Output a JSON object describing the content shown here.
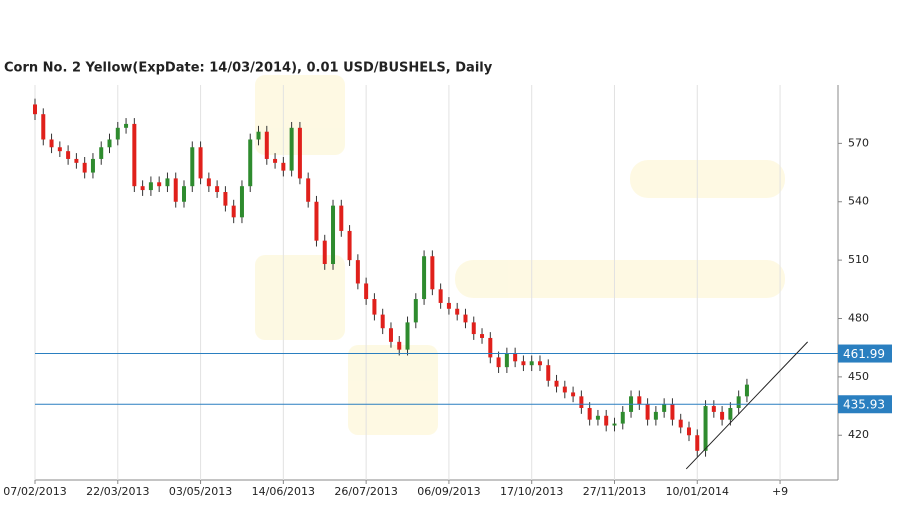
{
  "chart_data": {
    "type": "candlestick",
    "title": "Corn  No. 2 Yellow(ExpDate: 14/03/2014), 0.01 USD/BUSHELS, Daily",
    "x": [
      0,
      3,
      6,
      9,
      12,
      15,
      18,
      21,
      24,
      27,
      30,
      33,
      36,
      39,
      42,
      45,
      48,
      51,
      54,
      57,
      60,
      63,
      66,
      69,
      72,
      75,
      78,
      81,
      84,
      87,
      90,
      93,
      96,
      99,
      102,
      105,
      108,
      111,
      114,
      117,
      120,
      123,
      126,
      129,
      132,
      135,
      138,
      141,
      144,
      147,
      150,
      153,
      156,
      159,
      162,
      165,
      168,
      171,
      174,
      177,
      180,
      183,
      186,
      189,
      192,
      195,
      198,
      201,
      204,
      207,
      210,
      213,
      216,
      219,
      222,
      225,
      228,
      231,
      234,
      237,
      240,
      243,
      246,
      249,
      252,
      255,
      258
    ],
    "open": [
      590,
      585,
      572,
      568,
      566,
      562,
      560,
      555,
      562,
      568,
      572,
      578,
      580,
      548,
      546,
      550,
      548,
      552,
      540,
      548,
      568,
      552,
      548,
      545,
      538,
      532,
      548,
      572,
      576,
      562,
      560,
      556,
      578,
      552,
      540,
      520,
      508,
      538,
      525,
      510,
      498,
      490,
      482,
      475,
      468,
      464,
      478,
      490,
      512,
      495,
      488,
      485,
      482,
      478,
      472,
      470,
      460,
      455,
      462,
      458,
      456,
      458,
      456,
      448,
      445,
      442,
      440,
      434,
      428,
      430,
      425,
      426,
      432,
      440,
      436,
      428,
      432,
      436,
      428,
      424,
      420,
      412,
      435,
      432,
      428,
      434,
      440
    ],
    "high": [
      593,
      588,
      575,
      571,
      569,
      565,
      563,
      565,
      571,
      575,
      581,
      583,
      583,
      551,
      553,
      553,
      555,
      555,
      551,
      571,
      571,
      555,
      551,
      548,
      541,
      551,
      575,
      579,
      579,
      565,
      563,
      581,
      581,
      555,
      543,
      523,
      541,
      541,
      528,
      513,
      501,
      493,
      485,
      478,
      471,
      481,
      493,
      515,
      515,
      498,
      491,
      488,
      485,
      481,
      475,
      473,
      463,
      465,
      465,
      461,
      461,
      461,
      459,
      451,
      448,
      445,
      443,
      437,
      433,
      433,
      429,
      435,
      443,
      443,
      439,
      435,
      439,
      439,
      431,
      427,
      423,
      438,
      438,
      435,
      437,
      443,
      449
    ],
    "low": [
      582,
      569,
      565,
      563,
      559,
      557,
      552,
      552,
      559,
      565,
      569,
      575,
      545,
      543,
      543,
      545,
      545,
      537,
      537,
      545,
      549,
      545,
      542,
      535,
      529,
      529,
      545,
      569,
      559,
      557,
      553,
      553,
      549,
      537,
      517,
      505,
      505,
      522,
      507,
      495,
      487,
      479,
      472,
      465,
      461,
      461,
      475,
      487,
      492,
      485,
      482,
      479,
      475,
      469,
      467,
      457,
      452,
      452,
      455,
      453,
      453,
      453,
      445,
      442,
      439,
      437,
      431,
      425,
      425,
      422,
      422,
      423,
      429,
      433,
      425,
      425,
      429,
      425,
      421,
      417,
      409,
      409,
      429,
      425,
      425,
      431,
      437
    ],
    "close": [
      585,
      572,
      568,
      566,
      562,
      560,
      555,
      562,
      568,
      572,
      578,
      580,
      548,
      546,
      550,
      548,
      552,
      540,
      548,
      568,
      552,
      548,
      545,
      538,
      532,
      548,
      572,
      576,
      562,
      560,
      556,
      578,
      552,
      540,
      520,
      508,
      538,
      525,
      510,
      498,
      490,
      482,
      475,
      468,
      464,
      478,
      490,
      512,
      495,
      488,
      485,
      482,
      478,
      472,
      470,
      460,
      455,
      462,
      458,
      456,
      458,
      456,
      448,
      445,
      442,
      440,
      434,
      428,
      430,
      425,
      426,
      432,
      440,
      436,
      428,
      432,
      436,
      428,
      424,
      420,
      412,
      435,
      432,
      428,
      434,
      440,
      446
    ],
    "up_color": "#2e8b2e",
    "down_color": "#e0201b",
    "xlim": [
      0,
      291
    ],
    "xticks": [
      {
        "value": 0,
        "label": "07/02/2013"
      },
      {
        "value": 30,
        "label": "22/03/2013"
      },
      {
        "value": 60,
        "label": "03/05/2013"
      },
      {
        "value": 90,
        "label": "14/06/2013"
      },
      {
        "value": 120,
        "label": "26/07/2013"
      },
      {
        "value": 150,
        "label": "06/09/2013"
      },
      {
        "value": 180,
        "label": "17/10/2013"
      },
      {
        "value": 210,
        "label": "27/11/2013"
      },
      {
        "value": 240,
        "label": "10/01/2014"
      },
      {
        "value": 270,
        "label": "+9"
      }
    ],
    "ylim": [
      397,
      600
    ],
    "yticks": [
      420,
      450,
      480,
      510,
      540,
      570
    ],
    "levels": [
      461.99,
      435.93
    ],
    "level_color": "#2a7fc0",
    "trendline": {
      "x": [
        236,
        280
      ],
      "y": [
        402.7,
        468
      ]
    },
    "grid": "x"
  }
}
